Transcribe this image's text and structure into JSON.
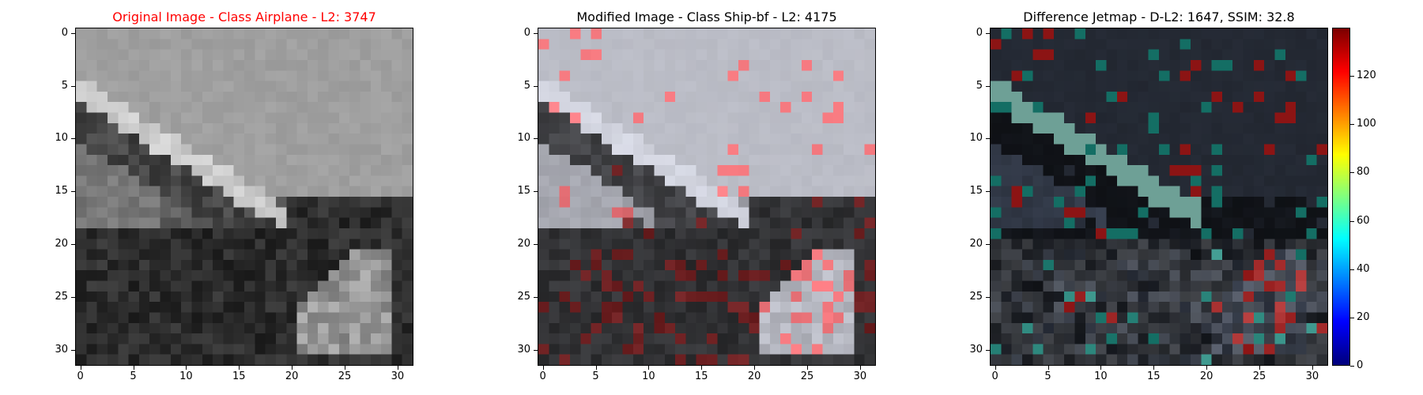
{
  "panels": [
    {
      "id": "original",
      "title": "Original Image - Class Airplane - L2: 3747",
      "title_color": "#ff0000",
      "style": "grayscale"
    },
    {
      "id": "modified",
      "title": "Modified Image - Class Ship-bf - L2: 4175",
      "title_color": "#000000",
      "style": "modified"
    },
    {
      "id": "difference",
      "title": "Difference Jetmap - D-L2: 1647, SSIM: 32.8",
      "title_color": "#000000",
      "style": "jet"
    }
  ],
  "axis_ticks": [
    "0",
    "5",
    "10",
    "15",
    "20",
    "25",
    "30"
  ],
  "colorbar": {
    "colormap": "jet",
    "range": [
      0,
      140
    ],
    "ticks": [
      "0",
      "20",
      "40",
      "60",
      "80",
      "100",
      "120"
    ]
  }
}
